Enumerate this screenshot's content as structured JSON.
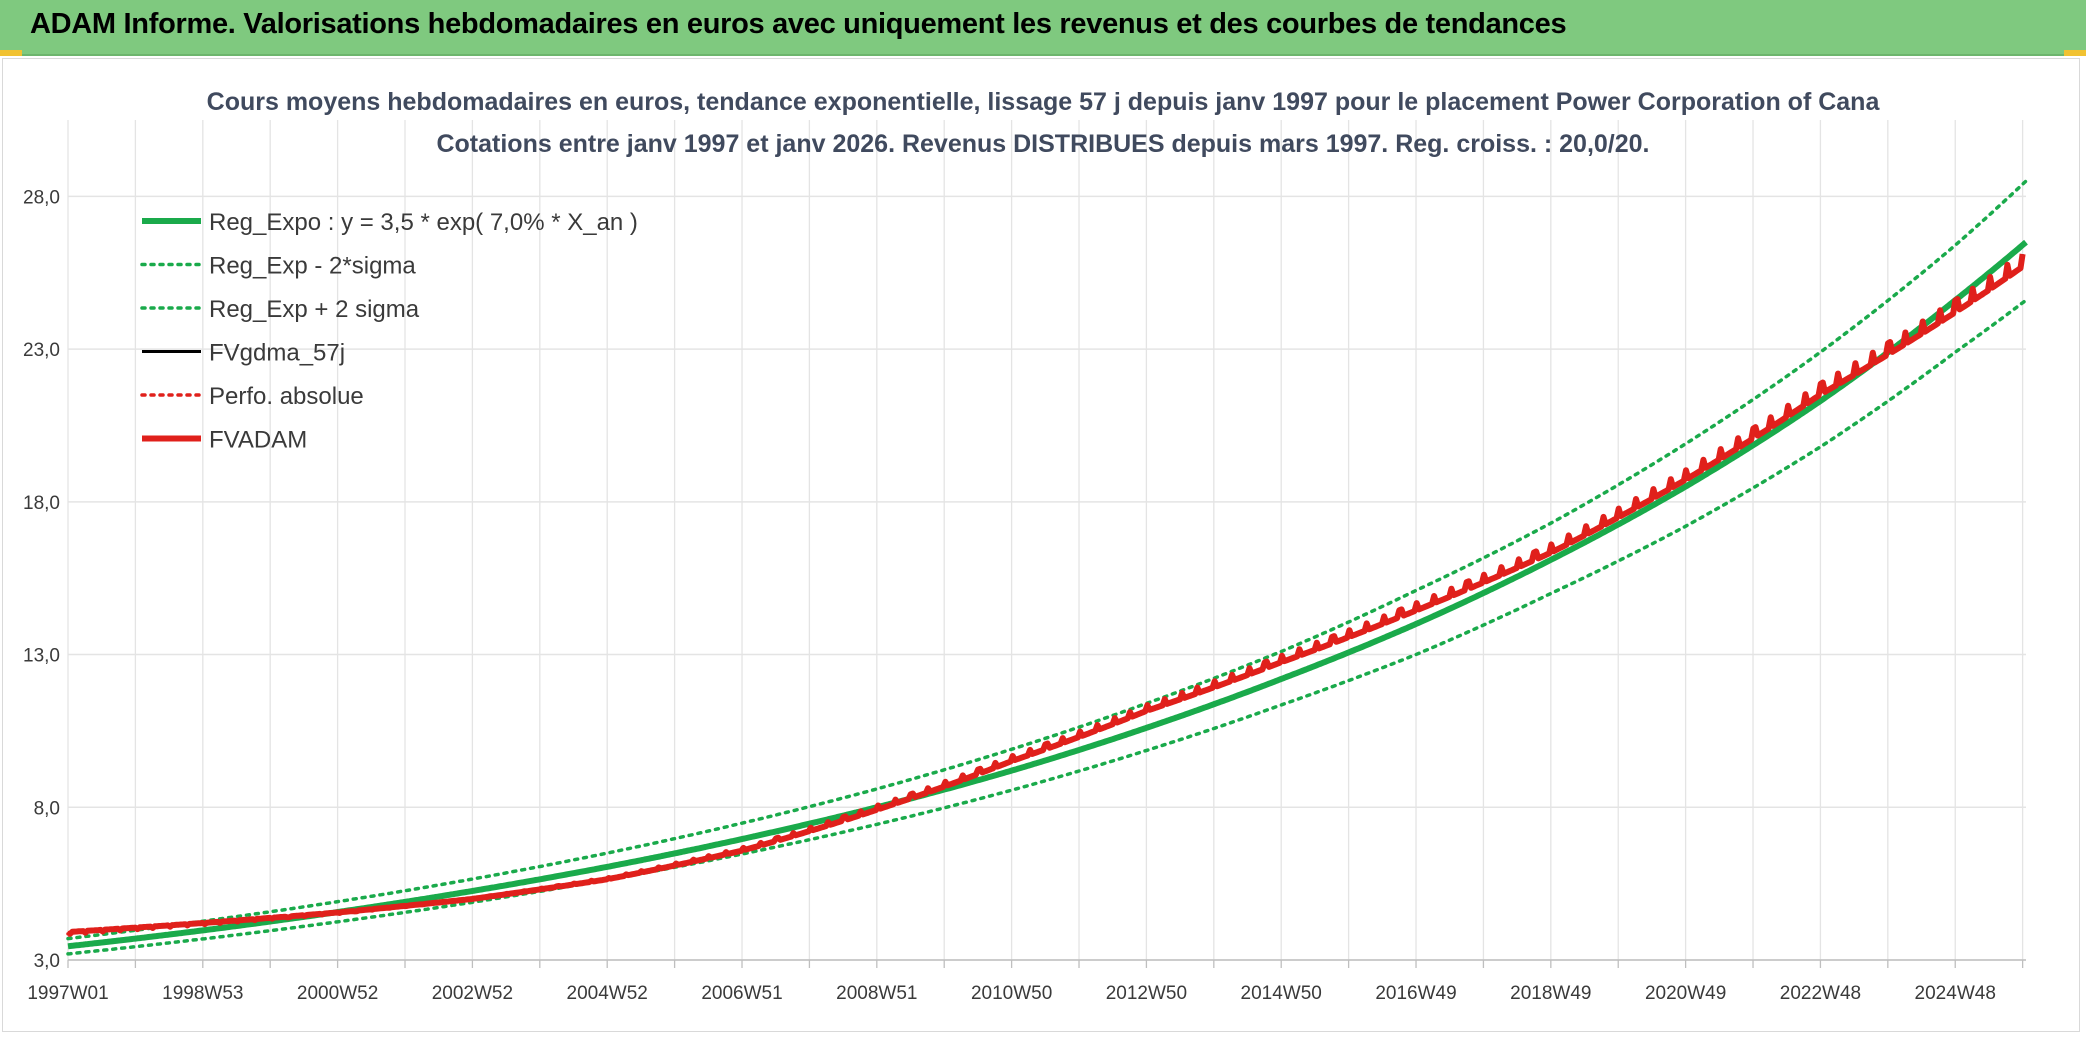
{
  "header": {
    "title": "ADAM Informe. Valorisations hebdomadaires en euros avec uniquement les revenus et des courbes de tendances"
  },
  "colors": {
    "header_bg": "#7fc97f",
    "reg_green": "#1aaa4b",
    "adam_red": "#e0201b",
    "fv_black": "#000000",
    "grid": "#e4e4e4"
  },
  "chart_data": {
    "type": "line",
    "title": "Cours moyens hebdomadaires en euros, tendance exponentielle, lissage 57 j depuis janv 1997 pour le placement Power Corporation of Cana",
    "subtitle": "Cotations entre janv 1997 et janv 2026. Revenus DISTRIBUES depuis mars 1997. Reg. croiss. : 20,0/20.",
    "xlabel": "",
    "ylabel": "",
    "ylim": [
      3.0,
      30.5
    ],
    "xlim": [
      1997.0,
      2026.05
    ],
    "y_ticks": [
      "3,0",
      "8,0",
      "13,0",
      "18,0",
      "23,0",
      "28,0"
    ],
    "y_tick_values": [
      3,
      8,
      13,
      18,
      23,
      28
    ],
    "x_ticks": [
      "1997W01",
      "1998W53",
      "2000W52",
      "2002W52",
      "2004W52",
      "2006W51",
      "2008W51",
      "2010W50",
      "2012W50",
      "2014W50",
      "2016W49",
      "2018W49",
      "2020W49",
      "2022W48",
      "2024W48"
    ],
    "x_tick_years": [
      1997.0,
      1999.0,
      2001.0,
      2003.0,
      2005.0,
      2007.0,
      2009.0,
      2011.0,
      2013.0,
      2015.0,
      2017.0,
      2019.0,
      2021.0,
      2023.0,
      2025.0
    ],
    "grid": true,
    "legend_position": "top-left",
    "series": [
      {
        "name": "Reg_Expo : y = 3,5 * exp( 7,0% *  X_an )",
        "style": "solid-thick",
        "color": "#1aaa4b",
        "x": [
          1997.0,
          1999.0,
          2001.0,
          2003.0,
          2005.0,
          2007.0,
          2009.0,
          2011.0,
          2013.0,
          2015.0,
          2017.0,
          2019.0,
          2021.0,
          2023.0,
          2025.0,
          2026.05
        ],
        "values": [
          3.45,
          3.97,
          4.57,
          5.26,
          6.05,
          6.96,
          8.0,
          9.2,
          10.6,
          12.2,
          14.0,
          16.1,
          18.5,
          21.3,
          24.6,
          26.5
        ]
      },
      {
        "name": "Reg_Exp - 2*sigma",
        "style": "dotted",
        "color": "#1aaa4b",
        "x": [
          1997.0,
          1999.0,
          2001.0,
          2003.0,
          2005.0,
          2007.0,
          2009.0,
          2011.0,
          2013.0,
          2015.0,
          2017.0,
          2019.0,
          2021.0,
          2023.0,
          2025.0,
          2026.05
        ],
        "values": [
          3.2,
          3.69,
          4.25,
          4.89,
          5.63,
          6.47,
          7.44,
          8.56,
          9.86,
          11.35,
          13.0,
          15.0,
          17.2,
          19.8,
          22.9,
          24.6
        ]
      },
      {
        "name": "Reg_Exp + 2 sigma",
        "style": "dotted",
        "color": "#1aaa4b",
        "x": [
          1997.0,
          1999.0,
          2001.0,
          2003.0,
          2005.0,
          2007.0,
          2009.0,
          2011.0,
          2013.0,
          2015.0,
          2017.0,
          2019.0,
          2021.0,
          2023.0,
          2025.0,
          2026.05
        ],
        "values": [
          3.7,
          4.27,
          4.91,
          5.65,
          6.5,
          7.48,
          8.6,
          9.9,
          11.4,
          13.1,
          15.1,
          17.3,
          19.9,
          22.9,
          26.4,
          28.5
        ]
      },
      {
        "name": "FVgdma_57j",
        "style": "solid",
        "color": "#000000",
        "x": [
          1997.0,
          1999.0,
          2001.0,
          2003.0,
          2005.0,
          2007.0,
          2009.0,
          2011.0,
          2013.0,
          2015.0,
          2017.0,
          2019.0,
          2021.0,
          2023.0,
          2025.0,
          2026.0
        ],
        "values": [
          3.9,
          4.2,
          4.55,
          5.0,
          5.65,
          6.6,
          7.95,
          9.55,
          11.2,
          12.8,
          14.5,
          16.4,
          18.8,
          21.6,
          24.3,
          25.8
        ]
      },
      {
        "name": "Perfo. absolue",
        "style": "dotted",
        "color": "#e0201b",
        "x": [
          1997.0,
          1999.0,
          2001.0,
          2003.0,
          2005.0,
          2007.0,
          2009.0,
          2011.0,
          2013.0,
          2015.0,
          2017.0,
          2019.0,
          2021.0,
          2023.0,
          2025.0,
          2026.0
        ],
        "values": [
          3.9,
          4.2,
          4.55,
          5.0,
          5.65,
          6.6,
          7.95,
          9.55,
          11.2,
          12.8,
          14.5,
          16.4,
          18.8,
          21.6,
          24.3,
          25.8
        ]
      },
      {
        "name": "FVADAM",
        "style": "solid-thick",
        "color": "#e0201b",
        "x": [
          1997.0,
          1999.0,
          2001.0,
          2003.0,
          2005.0,
          2007.0,
          2009.0,
          2011.0,
          2013.0,
          2015.0,
          2017.0,
          2019.0,
          2021.0,
          2023.0,
          2025.0,
          2026.0
        ],
        "values": [
          3.9,
          4.2,
          4.55,
          5.0,
          5.65,
          6.6,
          7.95,
          9.55,
          11.2,
          12.8,
          14.5,
          16.4,
          18.8,
          21.6,
          24.3,
          25.8
        ]
      }
    ]
  }
}
